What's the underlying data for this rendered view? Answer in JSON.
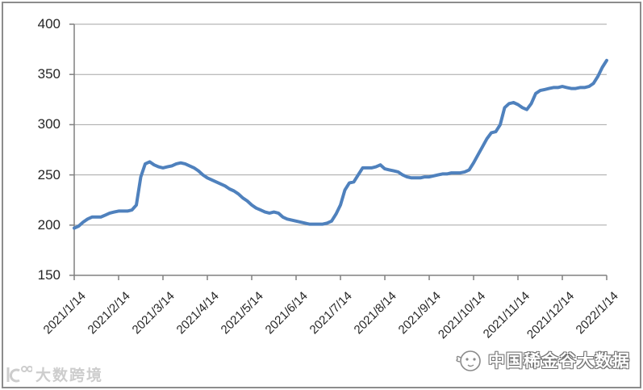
{
  "window": {
    "background": "#FFFFFF",
    "frame_border_color": "#8C8C8C"
  },
  "chart_data": {
    "type": "line",
    "title": "",
    "legend": "none",
    "grid": "horizontal",
    "axis_color": "#808080",
    "gridline_color": "#A6A6A6",
    "label_color": "#262626",
    "y_axis": {
      "min": 150,
      "max": 400,
      "tick_interval": 50,
      "tick_labels": [
        "150",
        "200",
        "250",
        "300",
        "350",
        "400"
      ]
    },
    "x_axis": {
      "label_rotation_deg": -45,
      "tick_labels": [
        "2021/1/14",
        "2021/2/14",
        "2021/3/14",
        "2021/4/14",
        "2021/5/14",
        "2021/6/14",
        "2021/7/14",
        "2021/8/14",
        "2021/9/14",
        "2021/10/14",
        "2021/11/14",
        "2021/12/14",
        "2022/1/14"
      ]
    },
    "series": [
      {
        "name": "price-index",
        "color": "#4F81BD",
        "stroke_width": 4,
        "x_start_label": "2021/1/14",
        "x_end_label": "2022/1/14",
        "x_step_months": 0.1,
        "values": [
          197,
          199,
          203,
          206,
          208,
          208,
          208,
          210,
          212,
          213,
          214,
          214,
          214,
          215,
          220,
          248,
          261,
          263,
          260,
          258,
          257,
          258,
          259,
          261,
          262,
          261,
          259,
          257,
          254,
          250,
          247,
          245,
          243,
          241,
          239,
          236,
          234,
          231,
          227,
          224,
          220,
          217,
          215,
          213,
          212,
          213,
          212,
          208,
          206,
          205,
          204,
          203,
          202,
          201,
          201,
          201,
          201,
          202,
          204,
          211,
          220,
          235,
          242,
          243,
          250,
          257,
          257,
          257,
          258,
          260,
          256,
          255,
          254,
          253,
          250,
          248,
          247,
          247,
          247,
          248,
          248,
          249,
          250,
          251,
          251,
          252,
          252,
          252,
          253,
          255,
          262,
          270,
          278,
          286,
          292,
          293,
          300,
          317,
          321,
          322,
          320,
          317,
          315,
          321,
          331,
          334,
          335,
          336,
          337,
          337,
          338,
          337,
          336,
          336,
          337,
          337,
          338,
          341,
          348,
          357,
          364
        ]
      }
    ]
  },
  "watermarks": {
    "bottom_left": {
      "icon": "dsj-logo-icon",
      "text": "大数跨境",
      "color": "#CDCDCD"
    },
    "bottom_right": {
      "icon": "mascot-logo-icon",
      "text": "中国稀金谷大数据",
      "color": "#707070"
    }
  }
}
